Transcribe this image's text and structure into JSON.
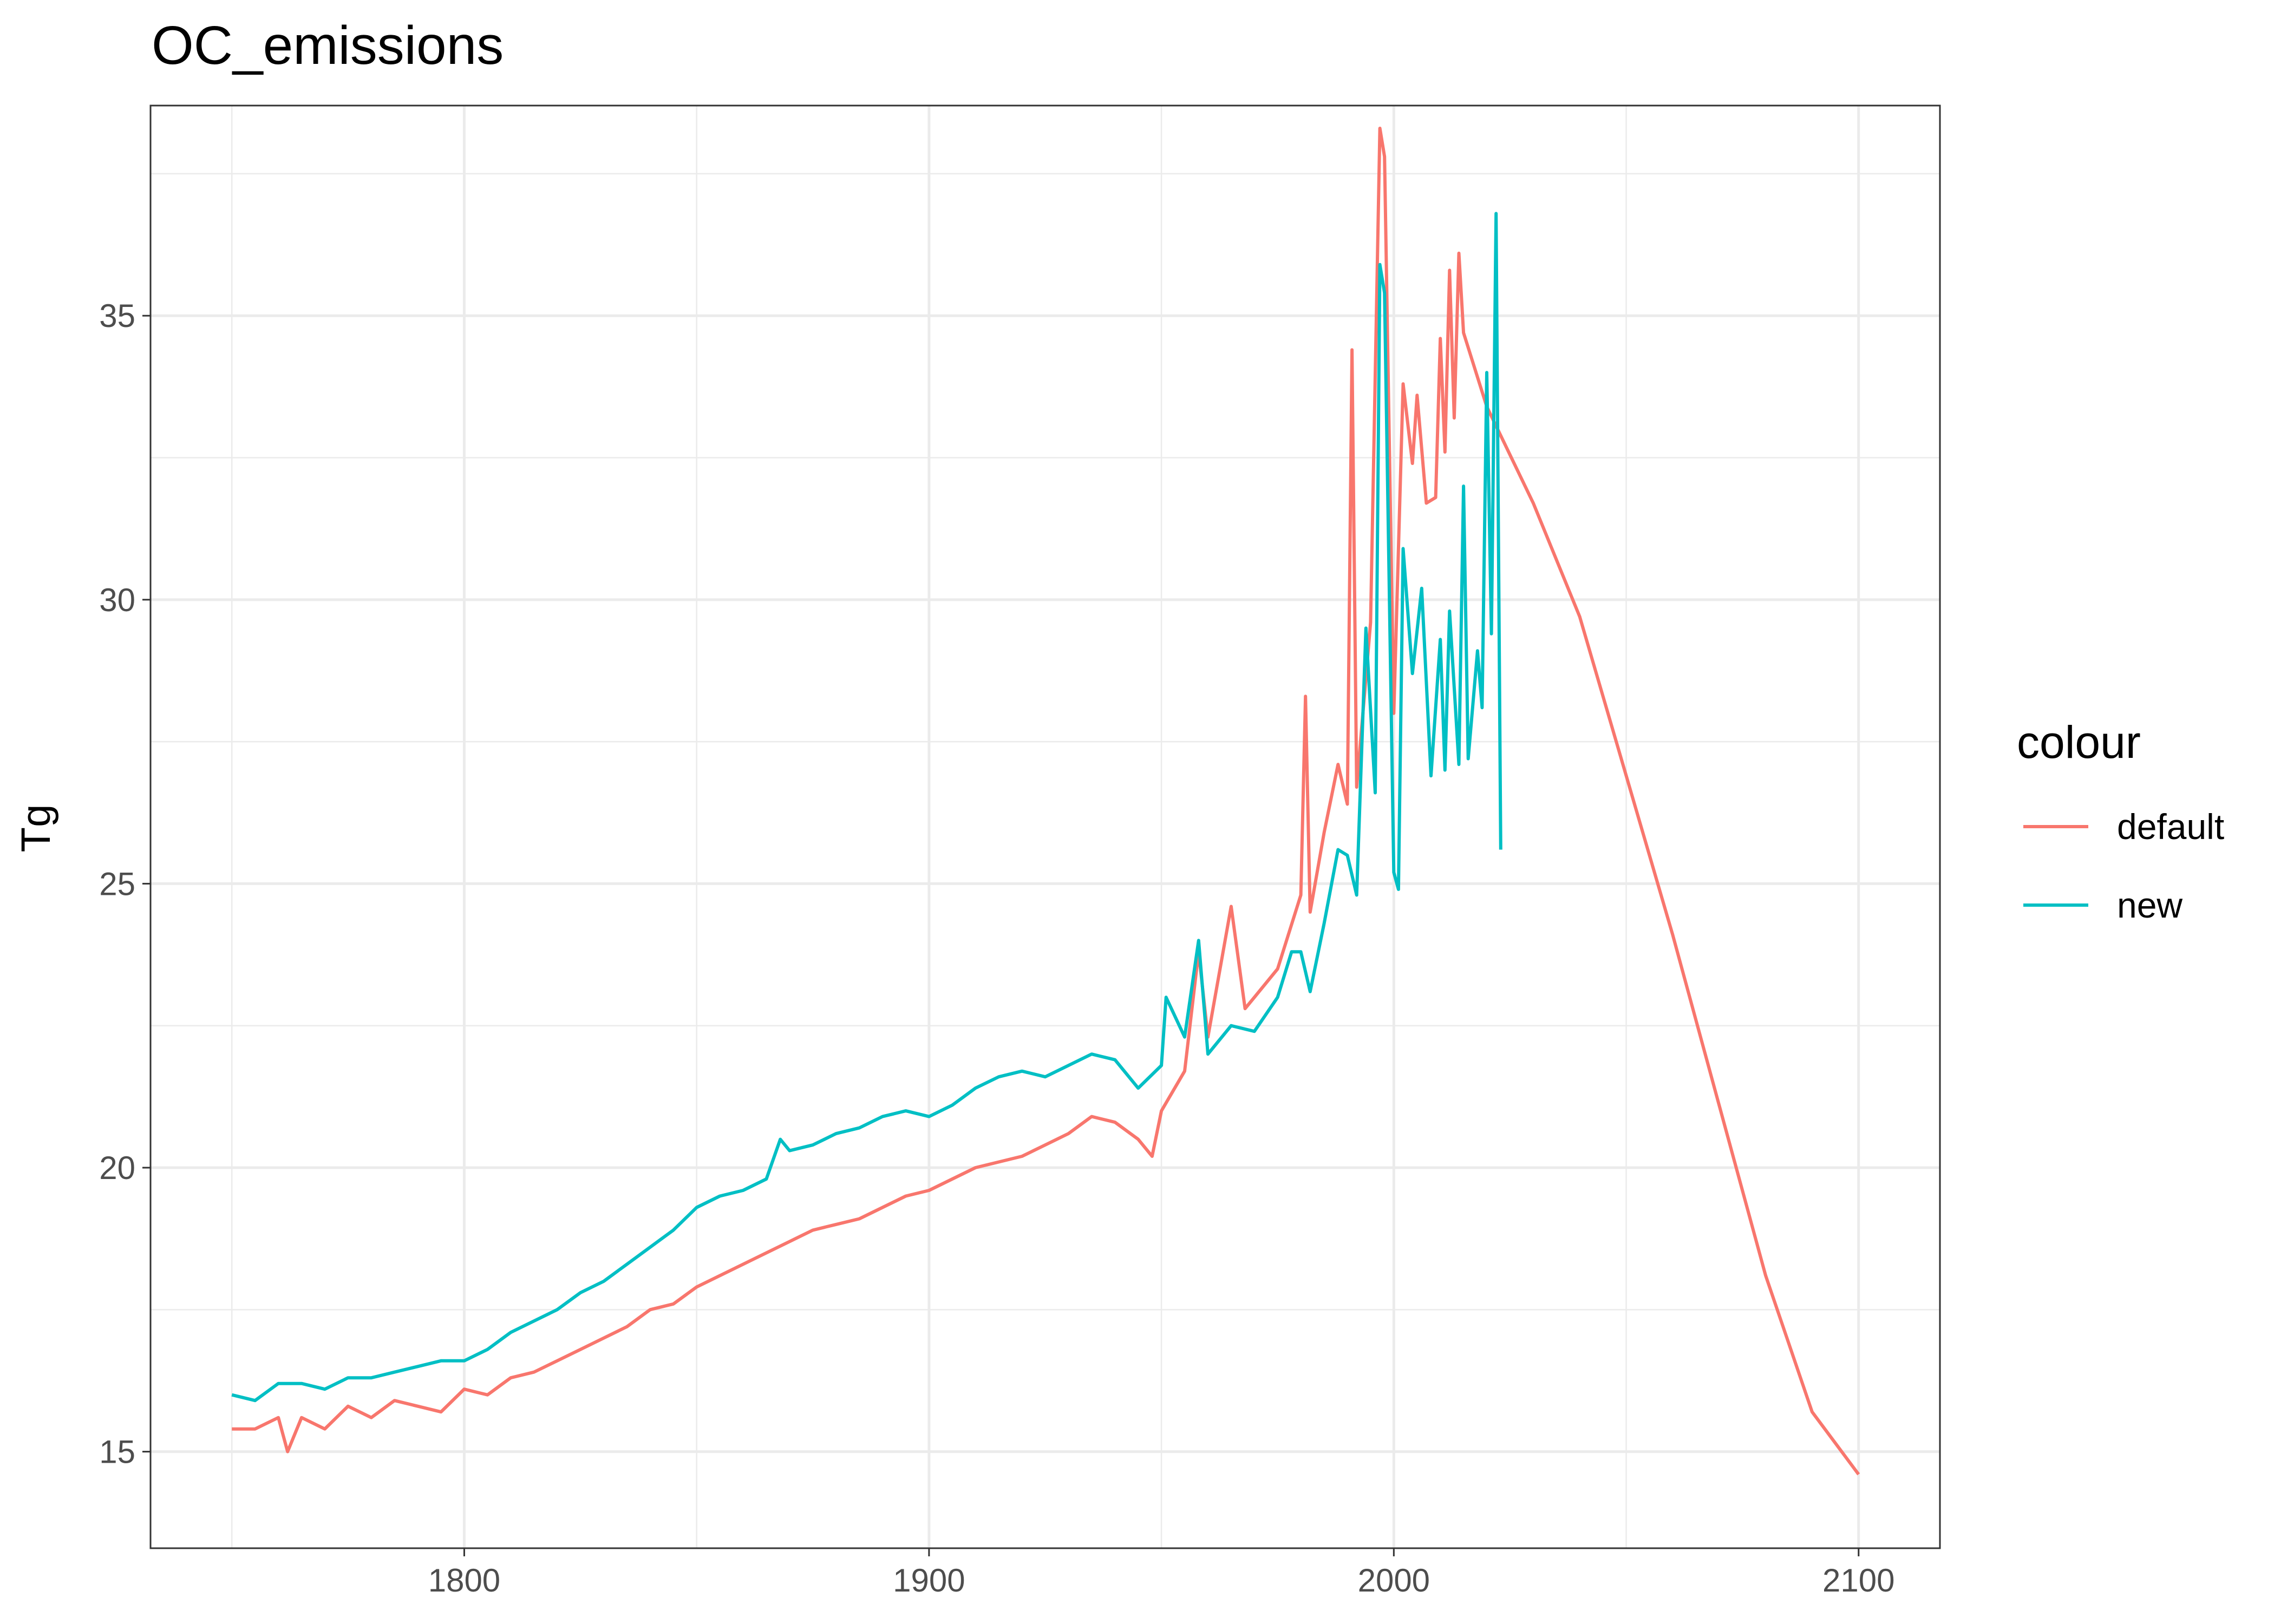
{
  "chart_data": {
    "type": "line",
    "title": "OC_emissions",
    "xlabel": "",
    "ylabel": "Tg",
    "xlim": [
      1732.5,
      2117.5
    ],
    "ylim": [
      13.3,
      38.7
    ],
    "x_ticks": [
      1800,
      1900,
      2000,
      2100
    ],
    "x_tick_labels": [
      "1800",
      "1900",
      "2000",
      "2100"
    ],
    "y_ticks": [
      15,
      20,
      25,
      30,
      35
    ],
    "y_tick_labels": [
      "15",
      "20",
      "25",
      "30",
      "35"
    ],
    "grid": true,
    "legend": {
      "title": "colour",
      "position": "right"
    },
    "series": [
      {
        "name": "default",
        "color": "#F8766D",
        "points": [
          [
            1750,
            15.4
          ],
          [
            1755,
            15.4
          ],
          [
            1760,
            15.6
          ],
          [
            1762,
            15.0
          ],
          [
            1765,
            15.6
          ],
          [
            1770,
            15.4
          ],
          [
            1775,
            15.8
          ],
          [
            1780,
            15.6
          ],
          [
            1785,
            15.9
          ],
          [
            1790,
            15.8
          ],
          [
            1795,
            15.7
          ],
          [
            1800,
            16.1
          ],
          [
            1805,
            16.0
          ],
          [
            1810,
            16.3
          ],
          [
            1815,
            16.4
          ],
          [
            1820,
            16.6
          ],
          [
            1825,
            16.8
          ],
          [
            1830,
            17.0
          ],
          [
            1835,
            17.2
          ],
          [
            1840,
            17.5
          ],
          [
            1845,
            17.6
          ],
          [
            1850,
            17.9
          ],
          [
            1855,
            18.1
          ],
          [
            1860,
            18.3
          ],
          [
            1865,
            18.5
          ],
          [
            1870,
            18.7
          ],
          [
            1875,
            18.9
          ],
          [
            1880,
            19.0
          ],
          [
            1885,
            19.1
          ],
          [
            1890,
            19.3
          ],
          [
            1895,
            19.5
          ],
          [
            1900,
            19.6
          ],
          [
            1905,
            19.8
          ],
          [
            1910,
            20.0
          ],
          [
            1915,
            20.1
          ],
          [
            1920,
            20.2
          ],
          [
            1925,
            20.4
          ],
          [
            1930,
            20.6
          ],
          [
            1935,
            20.9
          ],
          [
            1940,
            20.8
          ],
          [
            1945,
            20.5
          ],
          [
            1948,
            20.2
          ],
          [
            1950,
            21.0
          ],
          [
            1955,
            21.7
          ],
          [
            1958,
            23.8
          ],
          [
            1960,
            22.3
          ],
          [
            1965,
            24.6
          ],
          [
            1968,
            22.8
          ],
          [
            1970,
            23.0
          ],
          [
            1975,
            23.5
          ],
          [
            1980,
            24.8
          ],
          [
            1981,
            28.3
          ],
          [
            1982,
            24.5
          ],
          [
            1985,
            25.9
          ],
          [
            1988,
            27.1
          ],
          [
            1990,
            26.4
          ],
          [
            1991,
            34.4
          ],
          [
            1992,
            26.7
          ],
          [
            1995,
            29.6
          ],
          [
            1997,
            38.3
          ],
          [
            1998,
            37.8
          ],
          [
            2000,
            28.0
          ],
          [
            2002,
            33.8
          ],
          [
            2004,
            32.4
          ],
          [
            2005,
            33.6
          ],
          [
            2007,
            31.7
          ],
          [
            2009,
            31.8
          ],
          [
            2010,
            34.6
          ],
          [
            2011,
            32.6
          ],
          [
            2012,
            35.8
          ],
          [
            2013,
            33.2
          ],
          [
            2014,
            36.1
          ],
          [
            2015,
            34.7
          ],
          [
            2020,
            33.4
          ],
          [
            2030,
            31.7
          ],
          [
            2040,
            29.7
          ],
          [
            2050,
            26.9
          ],
          [
            2060,
            24.1
          ],
          [
            2070,
            21.1
          ],
          [
            2080,
            18.1
          ],
          [
            2090,
            15.7
          ],
          [
            2100,
            14.6
          ]
        ]
      },
      {
        "name": "new",
        "color": "#00BFC4",
        "points": [
          [
            1750,
            16.0
          ],
          [
            1755,
            15.9
          ],
          [
            1760,
            16.2
          ],
          [
            1765,
            16.2
          ],
          [
            1770,
            16.1
          ],
          [
            1775,
            16.3
          ],
          [
            1780,
            16.3
          ],
          [
            1785,
            16.4
          ],
          [
            1790,
            16.5
          ],
          [
            1795,
            16.6
          ],
          [
            1800,
            16.6
          ],
          [
            1805,
            16.8
          ],
          [
            1810,
            17.1
          ],
          [
            1815,
            17.3
          ],
          [
            1820,
            17.5
          ],
          [
            1825,
            17.8
          ],
          [
            1830,
            18.0
          ],
          [
            1835,
            18.3
          ],
          [
            1840,
            18.6
          ],
          [
            1845,
            18.9
          ],
          [
            1850,
            19.3
          ],
          [
            1855,
            19.5
          ],
          [
            1860,
            19.6
          ],
          [
            1865,
            19.8
          ],
          [
            1868,
            20.5
          ],
          [
            1870,
            20.3
          ],
          [
            1875,
            20.4
          ],
          [
            1880,
            20.6
          ],
          [
            1885,
            20.7
          ],
          [
            1890,
            20.9
          ],
          [
            1895,
            21.0
          ],
          [
            1900,
            20.9
          ],
          [
            1905,
            21.1
          ],
          [
            1910,
            21.4
          ],
          [
            1915,
            21.6
          ],
          [
            1920,
            21.7
          ],
          [
            1925,
            21.6
          ],
          [
            1930,
            21.8
          ],
          [
            1935,
            22.0
          ],
          [
            1940,
            21.9
          ],
          [
            1945,
            21.4
          ],
          [
            1950,
            21.8
          ],
          [
            1951,
            23.0
          ],
          [
            1955,
            22.3
          ],
          [
            1958,
            24.0
          ],
          [
            1960,
            22.0
          ],
          [
            1965,
            22.5
          ],
          [
            1970,
            22.4
          ],
          [
            1975,
            23.0
          ],
          [
            1978,
            23.8
          ],
          [
            1980,
            23.8
          ],
          [
            1982,
            23.1
          ],
          [
            1985,
            24.3
          ],
          [
            1988,
            25.6
          ],
          [
            1990,
            25.5
          ],
          [
            1992,
            24.8
          ],
          [
            1994,
            29.5
          ],
          [
            1996,
            26.6
          ],
          [
            1997,
            35.9
          ],
          [
            1998,
            35.4
          ],
          [
            2000,
            25.2
          ],
          [
            2001,
            24.9
          ],
          [
            2002,
            30.9
          ],
          [
            2004,
            28.7
          ],
          [
            2006,
            30.2
          ],
          [
            2008,
            26.9
          ],
          [
            2010,
            29.3
          ],
          [
            2011,
            27.0
          ],
          [
            2012,
            29.8
          ],
          [
            2014,
            27.1
          ],
          [
            2015,
            32.0
          ],
          [
            2016,
            27.2
          ],
          [
            2018,
            29.1
          ],
          [
            2019,
            28.1
          ],
          [
            2020,
            34.0
          ],
          [
            2021,
            29.4
          ],
          [
            2022,
            36.8
          ],
          [
            2023,
            25.6
          ]
        ]
      }
    ]
  }
}
